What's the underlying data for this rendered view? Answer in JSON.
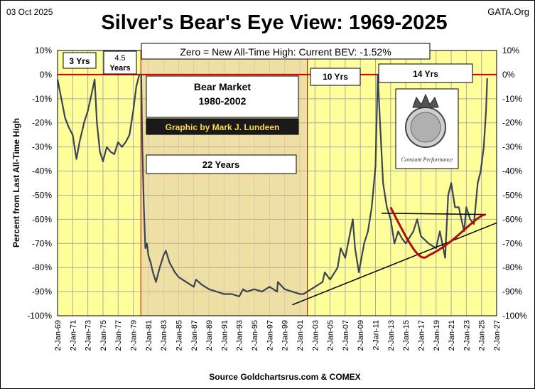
{
  "header": {
    "date": "03 Oct 2025",
    "title": "Silver's Bear's Eye View: 1969-2025",
    "brand": "GATA.Org"
  },
  "subtitle_box": "Zero = New All-Time High: Current BEV: -1.52%",
  "source": "Source Goldchartsrus.com & COMEX",
  "colors": {
    "plot_bg": "#ffff99",
    "grid": "#a9a9a9",
    "series": "#3b4356",
    "zero_line": "#cc0000",
    "bear_region": "#e8d6a8",
    "bear_border": "#cc0000",
    "curve": "#b01010",
    "trend": "#000000"
  },
  "annotations": {
    "yrs3": "3 Yrs",
    "yrs4_5_a": "4.5",
    "yrs4_5_b": "Years",
    "bear_title_a": "Bear Market",
    "bear_title_b": "1980-2002",
    "graphic_by": "Graphic by Mark J. Lundeen",
    "years22": "22 Years",
    "yrs10": "10 Yrs",
    "yrs14": "14 Yrs",
    "logo_text": "Constant Performance"
  },
  "chart_data": {
    "type": "line",
    "title": "Silver's Bear's Eye View: 1969-2025",
    "ylabel": "Percent from Last All-Time High",
    "xlabel": "",
    "ylim": [
      -100,
      10
    ],
    "xlim": [
      1969.0,
      2027.0
    ],
    "grid": true,
    "y_ticks": [
      "10%",
      "0%",
      "-10%",
      "-20%",
      "-30%",
      "-40%",
      "-50%",
      "-60%",
      "-70%",
      "-80%",
      "-90%",
      "-100%"
    ],
    "x_ticks": [
      "2-Jan-69",
      "2-Jan-71",
      "2-Jan-73",
      "2-Jan-75",
      "2-Jan-77",
      "2-Jan-79",
      "2-Jan-81",
      "2-Jan-83",
      "2-Jan-85",
      "2-Jan-87",
      "2-Jan-89",
      "2-Jan-91",
      "2-Jan-93",
      "2-Jan-95",
      "2-Jan-97",
      "2-Jan-99",
      "2-Jan-01",
      "2-Jan-03",
      "2-Jan-05",
      "2-Jan-07",
      "2-Jan-09",
      "2-Jan-11",
      "2-Jan-13",
      "2-Jan-15",
      "2-Jan-17",
      "2-Jan-19",
      "2-Jan-21",
      "2-Jan-23",
      "2-Jan-25",
      "2-Jan-27"
    ],
    "bear_market_range": [
      1980.0,
      2002.0
    ],
    "series": [
      {
        "x": [
          1969.0,
          1969.5,
          1970.0,
          1970.5,
          1971.0,
          1971.5,
          1971.9,
          1972.5,
          1973.0,
          1973.5,
          1973.9,
          1974.2,
          1974.6,
          1975.0,
          1975.5,
          1976.0,
          1976.5,
          1977.0,
          1977.5,
          1978.0,
          1978.5,
          1979.0,
          1979.4,
          1979.8,
          1980.05,
          1980.2,
          1980.4,
          1980.6,
          1980.8,
          1981.0,
          1981.3,
          1981.6,
          1982.0,
          1982.5,
          1983.0,
          1983.3,
          1983.8,
          1984.5,
          1985.0,
          1986.0,
          1987.0,
          1987.3,
          1988.0,
          1989.0,
          1990.0,
          1991.0,
          1992.0,
          1993.0,
          1993.5,
          1994.0,
          1995.0,
          1996.0,
          1997.0,
          1998.0,
          1998.1,
          1999.0,
          2000.0,
          2001.0,
          2001.5,
          2002.0,
          2003.0,
          2004.0,
          2004.3,
          2005.0,
          2006.0,
          2006.4,
          2007.0,
          2008.0,
          2008.3,
          2008.8,
          2009.5,
          2010.0,
          2010.5,
          2011.0,
          2011.3,
          2011.6,
          2012.0,
          2012.5,
          2013.0,
          2013.5,
          2014.0,
          2014.5,
          2015.0,
          2016.0,
          2016.5,
          2017.0,
          2018.0,
          2019.0,
          2019.5,
          2020.2,
          2020.6,
          2021.0,
          2021.5,
          2022.0,
          2022.7,
          2023.0,
          2023.5,
          2024.0,
          2024.5,
          2024.9,
          2025.3,
          2025.6,
          2025.76
        ],
        "values": [
          -2,
          -10,
          -18,
          -22,
          -25,
          -35,
          -28,
          -20,
          -15,
          -8,
          -2,
          -20,
          -32,
          -36,
          -30,
          -32,
          -33,
          -28,
          -30,
          -28,
          -25,
          -15,
          -5,
          0,
          0,
          -30,
          -55,
          -72,
          -70,
          -75,
          -78,
          -82,
          -86,
          -80,
          -75,
          -73,
          -78,
          -82,
          -84,
          -86,
          -88,
          -85,
          -87,
          -89,
          -90,
          -91,
          -91,
          -92,
          -89,
          -90,
          -89,
          -90,
          -88,
          -90,
          -86,
          -89,
          -90,
          -91,
          -91,
          -90,
          -88,
          -86,
          -82,
          -85,
          -80,
          -72,
          -76,
          -60,
          -72,
          -82,
          -70,
          -65,
          -55,
          -38,
          0,
          -20,
          -45,
          -55,
          -60,
          -70,
          -65,
          -68,
          -70,
          -65,
          -60,
          -67,
          -70,
          -72,
          -65,
          -76,
          -50,
          -45,
          -55,
          -55,
          -65,
          -55,
          -60,
          -62,
          -45,
          -40,
          -30,
          -15,
          -1.52
        ]
      }
    ]
  }
}
